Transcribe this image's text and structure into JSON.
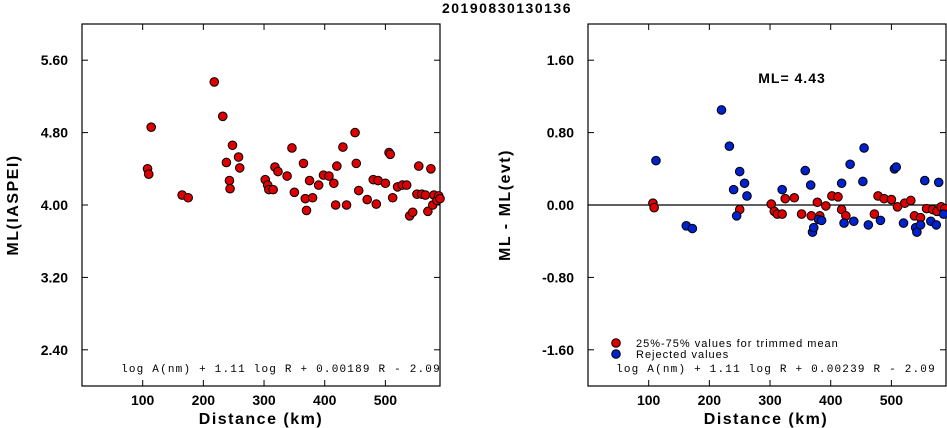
{
  "title": "20190830130136",
  "colors": {
    "accepted": "#dd0000",
    "rejected": "#0022cc",
    "frame": "#000000"
  },
  "chart_data": [
    {
      "type": "scatter",
      "xlabel": "Distance (km)",
      "ylabel": "ML(IASPEI)",
      "xlim": [
        0,
        590
      ],
      "ylim": [
        2.0,
        6.0
      ],
      "xticks": [
        "100",
        "200",
        "300",
        "400",
        "500"
      ],
      "xtick_values": [
        100,
        200,
        300,
        400,
        500
      ],
      "yticks": [
        "2.40",
        "3.20",
        "4.00",
        "4.80",
        "5.60"
      ],
      "ytick_values": [
        2.4,
        3.2,
        4.0,
        4.8,
        5.6
      ],
      "formula": "log A(nm) + 1.11 log R + 0.00189 R - 2.09",
      "series": [
        {
          "color": "red",
          "points": [
            [
              108,
              4.4
            ],
            [
              110,
              4.34
            ],
            [
              114,
              4.86
            ],
            [
              165,
              4.11
            ],
            [
              175,
              4.08
            ],
            [
              218,
              5.36
            ],
            [
              232,
              4.98
            ],
            [
              238,
              4.47
            ],
            [
              243,
              4.27
            ],
            [
              244,
              4.18
            ],
            [
              248,
              4.66
            ],
            [
              258,
              4.53
            ],
            [
              260,
              4.41
            ],
            [
              302,
              4.28
            ],
            [
              306,
              4.22
            ],
            [
              308,
              4.17
            ],
            [
              315,
              4.17
            ],
            [
              318,
              4.42
            ],
            [
              323,
              4.37
            ],
            [
              338,
              4.32
            ],
            [
              346,
              4.63
            ],
            [
              350,
              4.14
            ],
            [
              365,
              4.46
            ],
            [
              368,
              4.07
            ],
            [
              370,
              3.94
            ],
            [
              375,
              4.27
            ],
            [
              380,
              4.08
            ],
            [
              390,
              4.22
            ],
            [
              398,
              4.33
            ],
            [
              407,
              4.32
            ],
            [
              415,
              4.24
            ],
            [
              418,
              4.0
            ],
            [
              420,
              4.43
            ],
            [
              430,
              4.64
            ],
            [
              436,
              4.0
            ],
            [
              450,
              4.8
            ],
            [
              452,
              4.46
            ],
            [
              456,
              4.16
            ],
            [
              470,
              4.06
            ],
            [
              480,
              4.28
            ],
            [
              485,
              4.01
            ],
            [
              488,
              4.27
            ],
            [
              500,
              4.24
            ],
            [
              506,
              4.58
            ],
            [
              508,
              4.56
            ],
            [
              512,
              4.08
            ],
            [
              520,
              4.2
            ],
            [
              528,
              4.22
            ],
            [
              535,
              4.22
            ],
            [
              540,
              3.88
            ],
            [
              545,
              3.92
            ],
            [
              552,
              4.12
            ],
            [
              555,
              4.43
            ],
            [
              560,
              4.12
            ],
            [
              566,
              4.11
            ],
            [
              570,
              3.93
            ],
            [
              575,
              4.4
            ],
            [
              578,
              4.0
            ],
            [
              580,
              4.11
            ],
            [
              585,
              4.05
            ],
            [
              588,
              4.1
            ],
            [
              590,
              4.07
            ]
          ]
        }
      ]
    },
    {
      "type": "scatter",
      "xlabel": "Distance (km)",
      "ylabel": "ML - ML(evt)",
      "xlim": [
        0,
        590
      ],
      "ylim": [
        -2.0,
        2.0
      ],
      "xticks": [
        "100",
        "200",
        "300",
        "400",
        "500"
      ],
      "xtick_values": [
        100,
        200,
        300,
        400,
        500
      ],
      "yticks": [
        "-1.60",
        "-0.80",
        "0.00",
        "0.80",
        "1.60"
      ],
      "ytick_values": [
        -1.6,
        -0.8,
        0.0,
        0.8,
        1.6
      ],
      "reference_line": 0.0,
      "ml_label": "ML= 4.43",
      "formula": "log A(nm) + 1.11 log R + 0.00239 R - 2.09",
      "legend": {
        "placement": "bottom-left",
        "entries": [
          "25%-75% values for trimmed mean",
          "Rejected values"
        ]
      },
      "series": [
        {
          "name": "25%-75% values for trimmed mean",
          "color": "red",
          "points": [
            [
              107,
              0.02
            ],
            [
              109,
              -0.03
            ],
            [
              250,
              -0.05
            ],
            [
              302,
              0.01
            ],
            [
              307,
              -0.07
            ],
            [
              312,
              -0.1
            ],
            [
              320,
              -0.1
            ],
            [
              325,
              0.07
            ],
            [
              340,
              0.08
            ],
            [
              352,
              -0.1
            ],
            [
              368,
              -0.12
            ],
            [
              378,
              0.03
            ],
            [
              382,
              -0.12
            ],
            [
              392,
              -0.01
            ],
            [
              402,
              0.1
            ],
            [
              412,
              0.09
            ],
            [
              418,
              -0.05
            ],
            [
              425,
              -0.12
            ],
            [
              472,
              -0.1
            ],
            [
              478,
              0.1
            ],
            [
              488,
              0.07
            ],
            [
              500,
              0.06
            ],
            [
              510,
              -0.02
            ],
            [
              522,
              0.02
            ],
            [
              532,
              0.05
            ],
            [
              538,
              -0.12
            ],
            [
              548,
              -0.14
            ],
            [
              558,
              -0.04
            ],
            [
              568,
              -0.05
            ],
            [
              575,
              -0.07
            ],
            [
              582,
              -0.02
            ],
            [
              588,
              -0.04
            ]
          ]
        },
        {
          "name": "Rejected values",
          "color": "blue",
          "points": [
            [
              112,
              0.49
            ],
            [
              162,
              -0.23
            ],
            [
              172,
              -0.26
            ],
            [
              220,
              1.05
            ],
            [
              233,
              0.65
            ],
            [
              240,
              0.17
            ],
            [
              245,
              -0.12
            ],
            [
              250,
              0.37
            ],
            [
              258,
              0.24
            ],
            [
              262,
              0.1
            ],
            [
              320,
              0.17
            ],
            [
              358,
              0.38
            ],
            [
              367,
              0.22
            ],
            [
              370,
              -0.3
            ],
            [
              372,
              -0.25
            ],
            [
              380,
              -0.16
            ],
            [
              385,
              -0.17
            ],
            [
              418,
              0.24
            ],
            [
              422,
              -0.2
            ],
            [
              432,
              0.45
            ],
            [
              438,
              -0.18
            ],
            [
              453,
              0.26
            ],
            [
              455,
              0.63
            ],
            [
              462,
              -0.22
            ],
            [
              482,
              -0.17
            ],
            [
              505,
              0.4
            ],
            [
              508,
              0.42
            ],
            [
              520,
              -0.2
            ],
            [
              540,
              -0.25
            ],
            [
              542,
              -0.3
            ],
            [
              548,
              -0.22
            ],
            [
              555,
              0.27
            ],
            [
              565,
              -0.18
            ],
            [
              574,
              -0.22
            ],
            [
              578,
              0.25
            ],
            [
              586,
              -0.1
            ]
          ]
        }
      ]
    }
  ]
}
